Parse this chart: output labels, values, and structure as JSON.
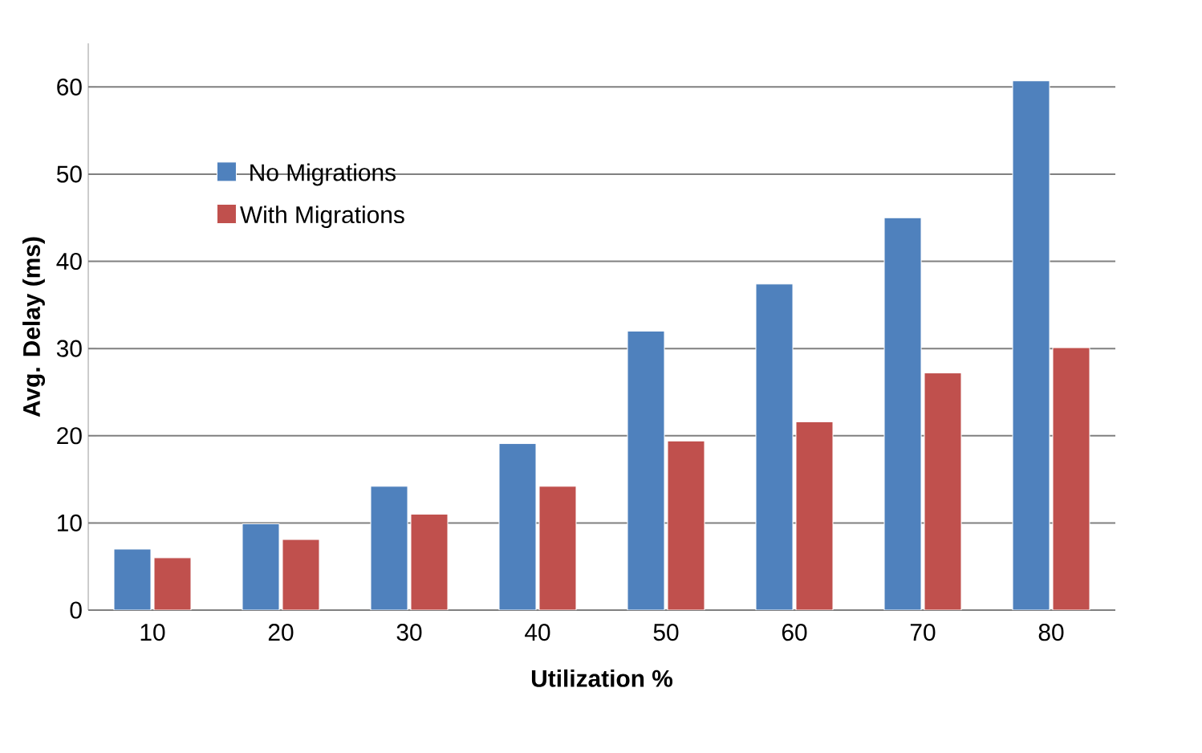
{
  "chart_data": {
    "type": "bar",
    "xlabel": "Utilization %",
    "ylabel": "Avg. Delay (ms)",
    "categories": [
      "10",
      "20",
      "30",
      "40",
      "50",
      "60",
      "70",
      "80"
    ],
    "series": [
      {
        "name": "No Migrations",
        "color": "#4f81bd",
        "values": [
          7.0,
          9.9,
          14.2,
          19.1,
          32.0,
          37.4,
          45.0,
          60.7
        ]
      },
      {
        "name": "With Migrations",
        "color": "#c0504d",
        "values": [
          6.0,
          8.1,
          11.0,
          14.2,
          19.4,
          21.6,
          27.2,
          30.1
        ]
      }
    ],
    "ylim": [
      0,
      65
    ],
    "yticks": [
      0,
      10,
      20,
      30,
      40,
      50,
      60
    ],
    "grid": "y",
    "legend": "top left"
  }
}
